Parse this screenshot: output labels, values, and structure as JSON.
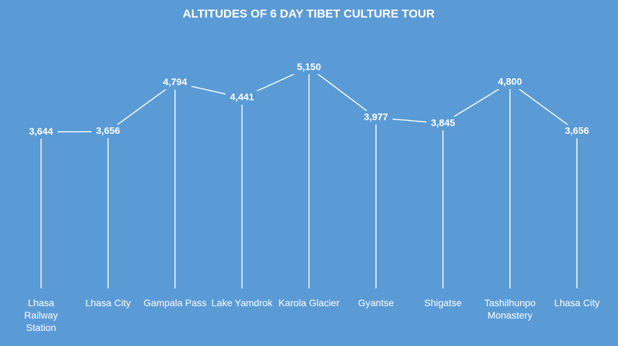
{
  "chart_data": {
    "type": "line",
    "title": "ALTITUDES OF 6 DAY TIBET CULTURE TOUR",
    "categories": [
      "Lhasa Railway Station",
      "Lhasa City",
      "Gampala Pass",
      "Lake Yamdrok",
      "Karola Glacier",
      "Gyantse",
      "Shigatse",
      "Tashilhunpo Monastery",
      "Lhasa City"
    ],
    "values": [
      3644,
      3656,
      4794,
      4441,
      5150,
      3977,
      3845,
      4800,
      3656
    ],
    "value_labels": [
      "3,644",
      "3,656",
      "4,794",
      "4,441",
      "5,150",
      "3,977",
      "3,845",
      "4,800",
      "3,656"
    ],
    "color": "#ffffff",
    "ylim": [
      0,
      6000
    ]
  }
}
